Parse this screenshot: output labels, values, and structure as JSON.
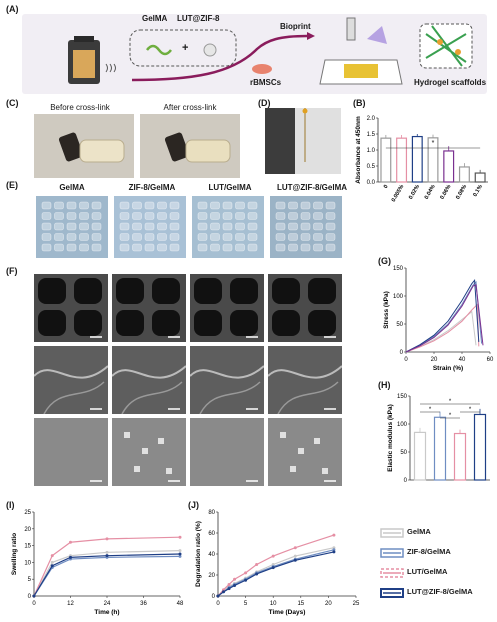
{
  "panels": {
    "A": "(A)",
    "B": "(B)",
    "C": "(C)",
    "D": "(D)",
    "E": "(E)",
    "F": "(F)",
    "G": "(G)",
    "H": "(H)",
    "I": "(I)",
    "J": "(J)"
  },
  "schematic": {
    "gelma": "GelMA",
    "lut_zif": "LUT@ZIF-8",
    "plus": "+",
    "bioprint": "Bioprint",
    "cells": "rBMSCs",
    "scaffold": "Hydrogel scaffolds"
  },
  "photos_c": {
    "before": "Before cross-link",
    "after": "After cross-link"
  },
  "scaffolds_e": [
    "GelMA",
    "ZIF-8/GelMA",
    "LUT/GelMA",
    "LUT@ZIF-8/GelMA"
  ],
  "colors": {
    "gelma": "#c9c9c9",
    "zif": "#6f8dc2",
    "lut": "#e58fa4",
    "lutzif": "#1f3f86",
    "purple": "#7a3090"
  },
  "legend": [
    {
      "label": "GelMA",
      "key": "gelma"
    },
    {
      "label": "ZIF-8/GelMA",
      "key": "zif"
    },
    {
      "label": "LUT/GelMA",
      "key": "lut"
    },
    {
      "label": "LUT@ZIF-8/GelMA",
      "key": "lutzif"
    }
  ],
  "chart_data": [
    {
      "panel": "B",
      "type": "bar",
      "ylabel": "Absorbance at 450nm",
      "ylim": [
        0,
        2.0
      ],
      "yticks": [
        "0.0",
        "0.5",
        "1.0",
        "1.5",
        "2.0"
      ],
      "categories": [
        "0",
        "0.005%",
        "0.02%",
        "0.04%",
        "0.06%",
        "0.08%",
        "0.1%"
      ],
      "values": [
        1.37,
        1.37,
        1.42,
        1.38,
        0.97,
        0.47,
        0.28
      ],
      "errors": [
        0.1,
        0.1,
        0.08,
        0.1,
        0.15,
        0.12,
        0.1
      ],
      "colors": [
        "#9a9a9a",
        "#e58fa4",
        "#1f3f86",
        "#9a9a9a",
        "#7a3090",
        "#9a9a9a",
        "#555555"
      ],
      "annotation": "*"
    },
    {
      "panel": "G",
      "type": "line",
      "xlabel": "Strain (%)",
      "ylabel": "Stress (kPa)",
      "xlim": [
        0,
        60
      ],
      "ylim": [
        0,
        150
      ],
      "xticks": [
        0,
        20,
        40,
        60
      ],
      "yticks": [
        0,
        50,
        100,
        150
      ],
      "series": [
        {
          "key": "gelma",
          "x": [
            0,
            10,
            20,
            30,
            40,
            47,
            50
          ],
          "y": [
            0,
            10,
            22,
            38,
            58,
            72,
            12
          ]
        },
        {
          "key": "lut",
          "x": [
            0,
            10,
            20,
            30,
            40,
            47,
            51,
            52
          ],
          "y": [
            0,
            9,
            20,
            35,
            55,
            75,
            85,
            10
          ]
        },
        {
          "key": "zif",
          "x": [
            0,
            10,
            20,
            30,
            40,
            48,
            50,
            54
          ],
          "y": [
            0,
            12,
            28,
            50,
            85,
            120,
            125,
            15
          ]
        },
        {
          "key": "lutzif",
          "x": [
            0,
            10,
            20,
            30,
            40,
            47,
            49,
            52
          ],
          "y": [
            0,
            13,
            30,
            55,
            92,
            122,
            128,
            18
          ]
        },
        {
          "key": "purple",
          "x": [
            0,
            10,
            20,
            30,
            40,
            48,
            50,
            55
          ],
          "y": [
            0,
            11,
            26,
            48,
            82,
            118,
            120,
            12
          ]
        }
      ]
    },
    {
      "panel": "H",
      "type": "bar",
      "ylabel": "Elastic modulus (kPa)",
      "ylim": [
        0,
        150
      ],
      "yticks": [
        0,
        50,
        100,
        150
      ],
      "categories": [
        "GelMA",
        "ZIF-8/GelMA",
        "LUT/GelMA",
        "LUT@ZIF-8/GelMA"
      ],
      "values": [
        85,
        112,
        83,
        117
      ],
      "errors": [
        8,
        10,
        7,
        10
      ],
      "annotation": "*"
    },
    {
      "panel": "I",
      "type": "line",
      "xlabel": "Time (h)",
      "ylabel": "Swelling ratio",
      "xlim": [
        0,
        48
      ],
      "ylim": [
        0,
        25
      ],
      "xticks": [
        0,
        12,
        24,
        36,
        48
      ],
      "yticks": [
        0,
        5,
        10,
        15,
        20,
        25
      ],
      "x": [
        0,
        6,
        12,
        24,
        48
      ],
      "series": [
        {
          "key": "gelma",
          "values": [
            0,
            10,
            12,
            13,
            13.5
          ]
        },
        {
          "key": "zif",
          "values": [
            0,
            8.5,
            11,
            11.5,
            11.8
          ]
        },
        {
          "key": "lut",
          "values": [
            0,
            12,
            16,
            17,
            17.5
          ]
        },
        {
          "key": "lutzif",
          "values": [
            0,
            9,
            11.5,
            12,
            12.5
          ]
        }
      ]
    },
    {
      "panel": "J",
      "type": "line",
      "xlabel": "Time (Days)",
      "ylabel": "Degradation ratio (%)",
      "xlim": [
        0,
        25
      ],
      "ylim": [
        0,
        80
      ],
      "xticks": [
        0,
        5,
        10,
        15,
        20,
        25
      ],
      "yticks": [
        0,
        20,
        40,
        60,
        80
      ],
      "x": [
        0,
        1,
        2,
        3,
        5,
        7,
        10,
        14,
        21
      ],
      "series": [
        {
          "key": "gelma",
          "values": [
            0,
            5,
            9,
            12,
            17,
            23,
            30,
            38,
            46
          ]
        },
        {
          "key": "zif",
          "values": [
            0,
            4,
            8,
            11,
            16,
            22,
            28,
            35,
            44
          ]
        },
        {
          "key": "lut",
          "values": [
            0,
            6,
            11,
            16,
            22,
            30,
            38,
            46,
            58
          ]
        },
        {
          "key": "lutzif",
          "values": [
            0,
            4,
            7,
            10,
            15,
            21,
            27,
            34,
            42
          ]
        }
      ]
    }
  ]
}
